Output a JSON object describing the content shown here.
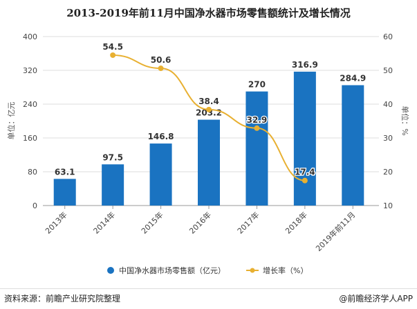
{
  "chart_data": {
    "type": "bar+line",
    "title": "2013-2019年前11月中国净水器市场零售额统计及增长情况",
    "categories": [
      "2013年",
      "2014年",
      "2015年",
      "2016年",
      "2017年",
      "2018年",
      "2019年前11月"
    ],
    "series": [
      {
        "name": "中国净水器市场零售额（亿元）",
        "type": "bar",
        "axis": "left",
        "color": "#1a73c1",
        "values": [
          63.1,
          97.5,
          146.8,
          203.2,
          270,
          316.9,
          284.9
        ]
      },
      {
        "name": "增长率（%）",
        "type": "line",
        "axis": "right",
        "color": "#e8b031",
        "values": [
          null,
          54.5,
          50.6,
          38.4,
          32.9,
          17.4,
          null
        ]
      }
    ],
    "ylabel": "单位：亿元",
    "ylim": [
      0,
      400
    ],
    "yticks": [
      "0",
      "80",
      "160",
      "240",
      "320",
      "400"
    ],
    "y2label": "单位：%",
    "y2lim": [
      10,
      60
    ],
    "y2ticks": [
      "10",
      "20",
      "30",
      "40",
      "50",
      "60"
    ],
    "grid": true,
    "legend": "bottom"
  },
  "footer": {
    "source": "资料来源：前瞻产业研究院整理",
    "brand": "@前瞻经济学人APP"
  }
}
